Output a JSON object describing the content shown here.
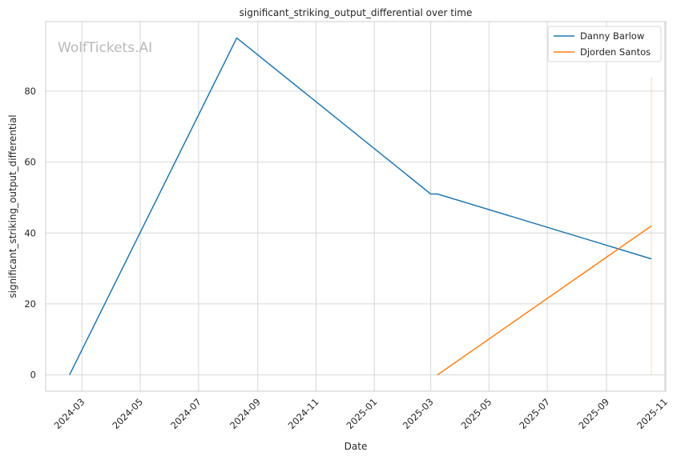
{
  "chart_data": {
    "type": "line",
    "title": "significant_striking_output_differential over time",
    "xlabel": "Date",
    "ylabel": "significant_striking_output_differential",
    "x_ticks": [
      "2024-03",
      "2024-05",
      "2024-07",
      "2024-09",
      "2024-11",
      "2025-01",
      "2025-03",
      "2025-05",
      "2025-07",
      "2025-09",
      "2025-11"
    ],
    "y_ticks": [
      0,
      20,
      40,
      60,
      80
    ],
    "ylim": [
      -4.6,
      99.6
    ],
    "xlim": [
      "2024-01-23",
      "2025-11-02"
    ],
    "grid": true,
    "legend_position": "top-right",
    "watermark": "WolfTickets.AI",
    "series": [
      {
        "name": "Danny Barlow",
        "color": "#1f77b4",
        "points": [
          {
            "x": "2024-02-17",
            "y": 0
          },
          {
            "x": "2024-08-10",
            "y": 95
          },
          {
            "x": "2025-03-01",
            "y": 51
          },
          {
            "x": "2025-03-08",
            "y": 51
          },
          {
            "x": "2025-10-18",
            "y": 32.7
          }
        ]
      },
      {
        "name": "Djorden Santos",
        "color": "#ff7f0e",
        "points": [
          {
            "x": "2025-03-08",
            "y": 0
          },
          {
            "x": "2025-10-18",
            "y": 42
          }
        ]
      }
    ],
    "annotations": [
      {
        "type": "vertical-band",
        "x": "2025-10-18",
        "y_from": 0,
        "y_to": 84,
        "color": "#ff7f0e"
      }
    ]
  }
}
